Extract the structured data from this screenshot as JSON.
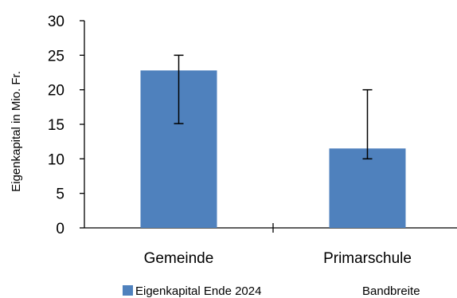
{
  "chart_data": {
    "type": "bar",
    "categories": [
      "Gemeinde",
      "Primarschule"
    ],
    "series": [
      {
        "name": "Eigenkapital Ende 2024",
        "values": [
          22.8,
          11.5
        ],
        "color": "#4F81BD"
      }
    ],
    "error_bands": {
      "name": "Bandbreite",
      "low": [
        15.1,
        10.0
      ],
      "high": [
        25.0,
        20.0
      ]
    },
    "ylabel": "Eigenkapital in Mio. Fr.",
    "xlabel": "",
    "ylim": [
      0,
      30
    ],
    "yticks": [
      0,
      5,
      10,
      15,
      20,
      25,
      30
    ],
    "grid": false,
    "legend_position": "bottom"
  }
}
